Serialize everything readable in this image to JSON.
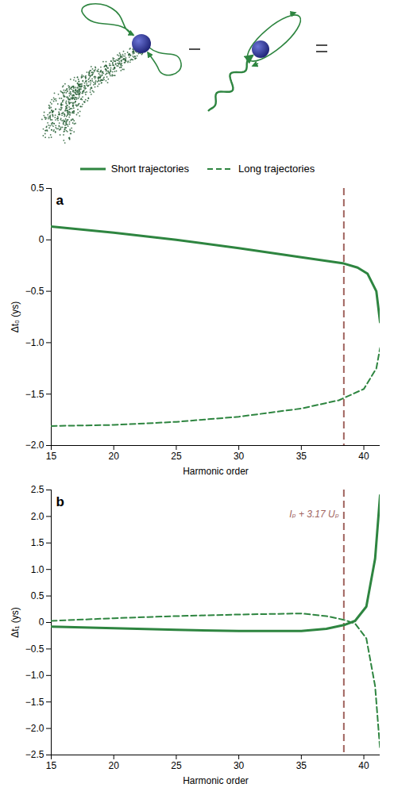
{
  "chart_data": [
    {
      "type": "line",
      "panel_label": "a",
      "x_label": "Harmonic order",
      "y_label": "Δt₀ (ys)",
      "xlim": [
        15,
        41.3
      ],
      "xticks": [
        15,
        20,
        25,
        30,
        35,
        40
      ],
      "ylim": [
        -2,
        0.5
      ],
      "yticks": [
        {
          "value": -2,
          "label": "−2.0"
        },
        {
          "value": -1.5,
          "label": "−1.5"
        },
        {
          "value": -1,
          "label": "−1.0"
        },
        {
          "value": -0.5,
          "label": "−0.5"
        },
        0,
        0.5
      ],
      "legend": "top",
      "series": [
        {
          "name": "Short trajectories",
          "color": "#2e8540",
          "line_style": "solid",
          "x": [
            15,
            20,
            25,
            30,
            35,
            38.4,
            39.5,
            40.3,
            41,
            41.3
          ],
          "values": [
            0.13,
            0.07,
            0.0,
            -0.08,
            -0.17,
            -0.23,
            -0.27,
            -0.33,
            -0.5,
            -0.8
          ]
        },
        {
          "name": "Long trajectories",
          "color": "#2e8540",
          "line_style": "dashed",
          "x": [
            15,
            20,
            25,
            30,
            35,
            38,
            40,
            41,
            41.3
          ],
          "values": [
            -1.81,
            -1.8,
            -1.77,
            -1.72,
            -1.64,
            -1.56,
            -1.45,
            -1.25,
            -1.05
          ]
        }
      ],
      "annotations": [
        {
          "x": 38.4,
          "color": "#a0645f"
        }
      ]
    },
    {
      "type": "line",
      "panel_label": "b",
      "x_label": "Harmonic order",
      "y_label": "Δt₁ (ys)",
      "xlim": [
        15,
        41.3
      ],
      "xticks": [
        15,
        20,
        25,
        30,
        35,
        40
      ],
      "ylim": [
        -2.5,
        2.5
      ],
      "yticks": [
        {
          "value": -2.5,
          "label": "−2.5"
        },
        {
          "value": -2,
          "label": "−2.0"
        },
        {
          "value": -1.5,
          "label": "−1.5"
        },
        {
          "value": -1,
          "label": "−1.0"
        },
        {
          "value": -0.5,
          "label": "−0.5"
        },
        0,
        0.5,
        {
          "value": 1,
          "label": "1.0"
        },
        1.5,
        {
          "value": 2,
          "label": "2.0"
        },
        2.5
      ],
      "series": [
        {
          "name": "Short trajectories",
          "color": "#2e8540",
          "line_style": "solid",
          "x": [
            15,
            20,
            25,
            30,
            35,
            37,
            38.4,
            39.3,
            40.2,
            40.9,
            41.3
          ],
          "values": [
            -0.08,
            -0.11,
            -0.14,
            -0.16,
            -0.16,
            -0.12,
            -0.05,
            0.03,
            0.3,
            1.2,
            2.4
          ]
        },
        {
          "name": "Long trajectories",
          "color": "#2e8540",
          "line_style": "dashed",
          "x": [
            15,
            20,
            25,
            30,
            35,
            37,
            38.4,
            39.3,
            40.2,
            40.9,
            41.3
          ],
          "values": [
            0.03,
            0.08,
            0.12,
            0.15,
            0.17,
            0.12,
            0.05,
            -0.02,
            -0.3,
            -1.2,
            -2.4
          ]
        }
      ],
      "annotations": [
        {
          "x": 38.4,
          "color": "#a0645f",
          "text": "Iₚ + 3.17 Uₚ"
        }
      ]
    }
  ]
}
